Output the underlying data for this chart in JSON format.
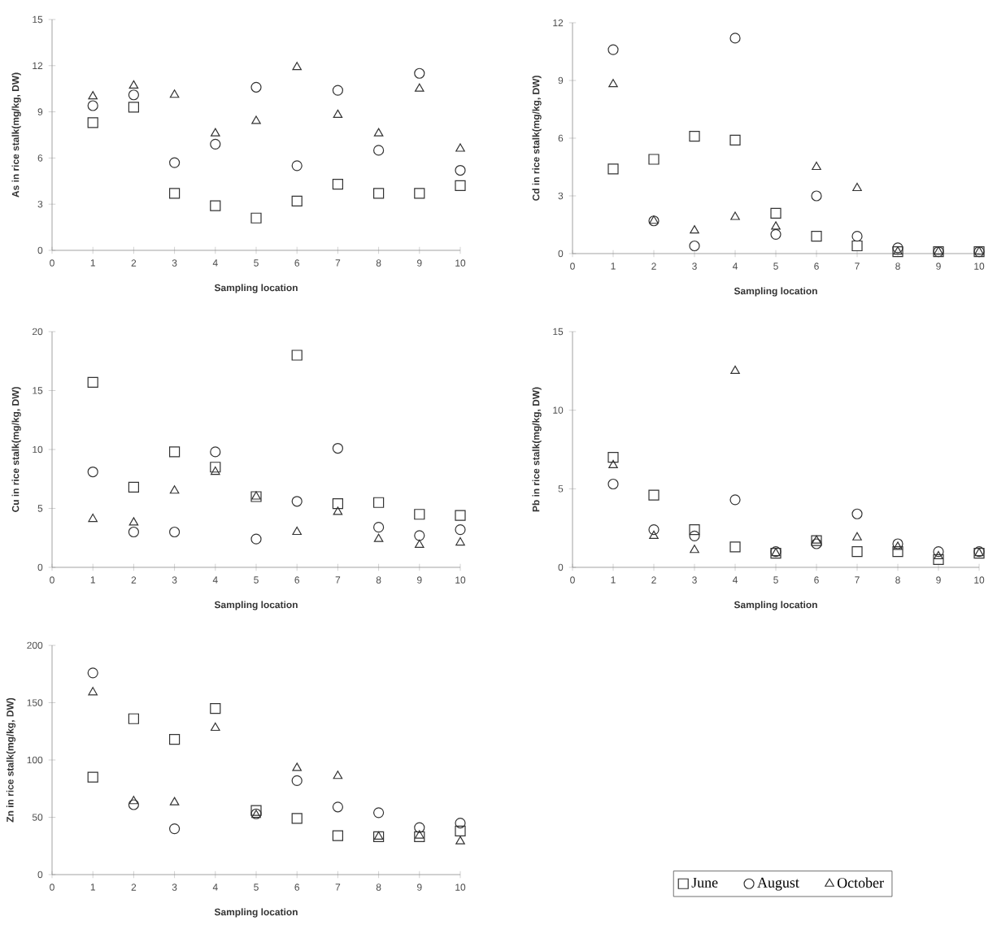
{
  "chart_data": [
    {
      "type": "scatter",
      "ylabel": "As in rice stalk(mg/kg, DW)",
      "xlabel": "Sampling location",
      "x": [
        1,
        2,
        3,
        4,
        5,
        6,
        7,
        8,
        9,
        10
      ],
      "xlim": [
        0,
        10
      ],
      "xticks": [
        0,
        1,
        2,
        3,
        4,
        5,
        6,
        7,
        8,
        9,
        10
      ],
      "ylim": [
        0,
        15
      ],
      "yticks": [
        0,
        3,
        6,
        9,
        12,
        15
      ],
      "series": [
        {
          "color": "#333333",
          "marker": "square",
          "values": [
            8.3,
            9.3,
            3.7,
            2.9,
            2.1,
            3.2,
            4.3,
            3.7,
            3.7,
            4.2
          ]
        },
        {
          "color": "#333333",
          "marker": "circle",
          "values": [
            9.4,
            10.1,
            5.7,
            6.9,
            10.6,
            5.5,
            10.4,
            6.5,
            11.5,
            5.2
          ]
        },
        {
          "color": "#333333",
          "marker": "triangle",
          "values": [
            10.0,
            10.7,
            10.1,
            7.6,
            8.4,
            11.9,
            8.8,
            7.6,
            10.5,
            6.6
          ]
        }
      ]
    },
    {
      "type": "scatter",
      "ylabel": "Cd in rice stalk(mg/kg, DW)",
      "xlabel": "Sampling location",
      "x": [
        1,
        2,
        3,
        4,
        5,
        6,
        7,
        8,
        9,
        10
      ],
      "xlim": [
        0,
        10
      ],
      "xticks": [
        0,
        1,
        2,
        3,
        4,
        5,
        6,
        7,
        8,
        9,
        10
      ],
      "ylim": [
        0,
        12
      ],
      "yticks": [
        0,
        3,
        6,
        9,
        12
      ],
      "series": [
        {
          "color": "#333333",
          "marker": "square",
          "values": [
            4.4,
            4.9,
            6.1,
            5.9,
            2.1,
            0.9,
            0.4,
            0.1,
            0.1,
            0.1
          ]
        },
        {
          "color": "#333333",
          "marker": "circle",
          "values": [
            10.6,
            1.7,
            0.4,
            11.2,
            1.0,
            3.0,
            0.9,
            0.3,
            0.1,
            0.1
          ]
        },
        {
          "color": "#333333",
          "marker": "triangle",
          "values": [
            8.8,
            1.7,
            1.2,
            1.9,
            1.4,
            4.5,
            3.4,
            0.1,
            0.1,
            0.1
          ]
        }
      ]
    },
    {
      "type": "scatter",
      "ylabel": "Cu in rice stalk(mg/kg, DW)",
      "xlabel": "Sampling location",
      "x": [
        1,
        2,
        3,
        4,
        5,
        6,
        7,
        8,
        9,
        10
      ],
      "xlim": [
        0,
        10
      ],
      "xticks": [
        0,
        1,
        2,
        3,
        4,
        5,
        6,
        7,
        8,
        9,
        10
      ],
      "ylim": [
        0,
        20
      ],
      "yticks": [
        0,
        5,
        10,
        15,
        20
      ],
      "series": [
        {
          "color": "#333333",
          "marker": "square",
          "values": [
            15.7,
            6.8,
            9.8,
            8.5,
            6.0,
            18.0,
            5.4,
            5.5,
            4.5,
            4.4
          ]
        },
        {
          "color": "#333333",
          "marker": "circle",
          "values": [
            8.1,
            3.0,
            3.0,
            9.8,
            2.4,
            5.6,
            10.1,
            3.4,
            2.7,
            3.2
          ]
        },
        {
          "color": "#333333",
          "marker": "triangle",
          "values": [
            4.1,
            3.8,
            6.5,
            8.1,
            6.0,
            3.0,
            4.7,
            2.4,
            1.9,
            2.1
          ]
        }
      ]
    },
    {
      "type": "scatter",
      "ylabel": "Pb in rice stalk(mg/kg, DW)",
      "xlabel": "Sampling location",
      "x": [
        1,
        2,
        3,
        4,
        5,
        6,
        7,
        8,
        9,
        10
      ],
      "xlim": [
        0,
        10
      ],
      "xticks": [
        0,
        1,
        2,
        3,
        4,
        5,
        6,
        7,
        8,
        9,
        10
      ],
      "ylim": [
        0,
        15
      ],
      "yticks": [
        0,
        5,
        10,
        15
      ],
      "series": [
        {
          "color": "#333333",
          "marker": "square",
          "values": [
            7.0,
            4.6,
            2.4,
            1.3,
            0.9,
            1.7,
            1.0,
            1.0,
            0.5,
            0.9
          ]
        },
        {
          "color": "#333333",
          "marker": "circle",
          "values": [
            5.3,
            2.4,
            2.0,
            4.3,
            1.0,
            1.5,
            3.4,
            1.5,
            1.0,
            1.0
          ]
        },
        {
          "color": "#333333",
          "marker": "triangle",
          "values": [
            6.5,
            2.0,
            1.1,
            12.5,
            0.9,
            1.7,
            1.9,
            1.3,
            0.7,
            0.9
          ]
        }
      ]
    },
    {
      "type": "scatter",
      "ylabel": "Zn in rice stalk(mg/kg, DW)",
      "xlabel": "Sampling location",
      "x": [
        1,
        2,
        3,
        4,
        5,
        6,
        7,
        8,
        9,
        10
      ],
      "xlim": [
        0,
        10
      ],
      "xticks": [
        0,
        1,
        2,
        3,
        4,
        5,
        6,
        7,
        8,
        9,
        10
      ],
      "ylim": [
        0,
        200
      ],
      "yticks": [
        0,
        50,
        100,
        150,
        200
      ],
      "legend": "bottom right",
      "series": [
        {
          "name": "June",
          "color": "#333333",
          "marker": "square",
          "values": [
            85,
            136,
            118,
            145,
            56,
            49,
            34,
            33,
            33,
            38
          ]
        },
        {
          "name": "August",
          "color": "#333333",
          "marker": "circle",
          "values": [
            176,
            61,
            40,
            null,
            53,
            82,
            59,
            54,
            41,
            45
          ]
        },
        {
          "name": "October",
          "color": "#333333",
          "marker": "triangle",
          "values": [
            159,
            64,
            63,
            128,
            52,
            93,
            86,
            33,
            34,
            29
          ]
        }
      ]
    }
  ]
}
